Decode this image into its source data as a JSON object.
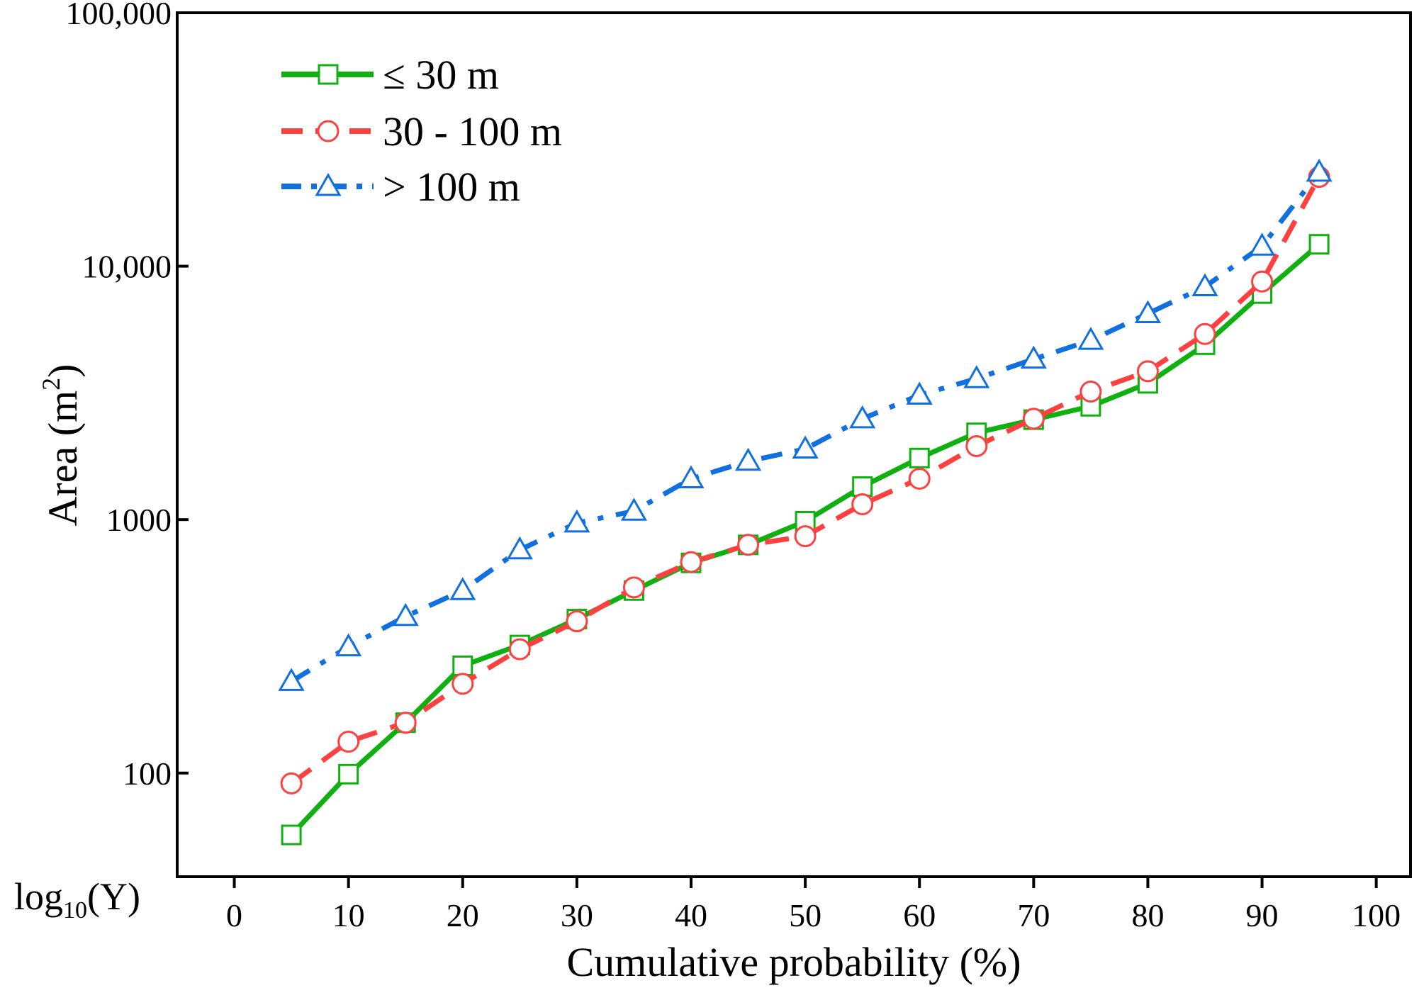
{
  "chart_data": {
    "type": "line",
    "title": "",
    "xlabel": "Cumulative probability (%)",
    "ylabel_main": "Area (m",
    "ylabel_sup": "2",
    "ylabel_close": ")",
    "ylabel": "Area (m2)",
    "y_axis_note": {
      "base": "log",
      "sub": "10",
      "rest": "(Y)"
    },
    "y_scale": "log",
    "xlim": [
      -5,
      103
    ],
    "ylim": [
      39,
      100000
    ],
    "x_ticks": [
      0,
      10,
      20,
      30,
      40,
      50,
      60,
      70,
      80,
      90,
      100
    ],
    "x_tick_labels": [
      "0",
      "10",
      "20",
      "30",
      "40",
      "50",
      "60",
      "70",
      "80",
      "90",
      "100"
    ],
    "y_ticks": [
      100,
      1000,
      10000,
      100000
    ],
    "y_tick_labels": [
      "100",
      "1000",
      "10,000",
      "100,000"
    ],
    "legend_position": "top-left",
    "x": [
      5,
      10,
      15,
      20,
      25,
      30,
      35,
      40,
      45,
      50,
      55,
      60,
      65,
      70,
      75,
      80,
      85,
      90,
      95
    ],
    "series": [
      {
        "name": "≤ 30 m",
        "color": "#11b011",
        "marker": "square",
        "dash": "solid",
        "values": [
          57,
          99,
          158,
          265,
          320,
          405,
          525,
          675,
          795,
          985,
          1350,
          1750,
          2200,
          2480,
          2800,
          3450,
          4900,
          7800,
          12200
        ]
      },
      {
        "name": "30 - 100 m",
        "color": "#ff4040",
        "marker": "circle",
        "dash": "dash",
        "values": [
          91,
          133,
          158,
          225,
          308,
          397,
          540,
          680,
          795,
          860,
          1150,
          1450,
          1950,
          2500,
          3200,
          3850,
          5400,
          8700,
          22500
        ]
      },
      {
        "name": "> 100 m",
        "color": "#1070e0",
        "marker": "triangle",
        "dash": "dashdot",
        "values": [
          230,
          315,
          415,
          525,
          760,
          970,
          1080,
          1450,
          1700,
          1900,
          2500,
          3100,
          3600,
          4300,
          5100,
          6500,
          8300,
          12000,
          23500
        ]
      }
    ]
  }
}
